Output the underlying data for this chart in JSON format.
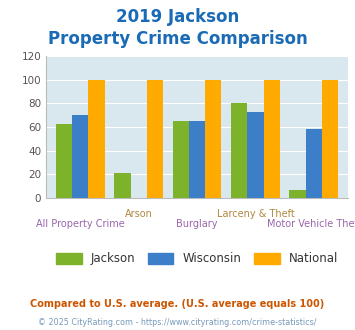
{
  "title_line1": "2019 Jackson",
  "title_line2": "Property Crime Comparison",
  "x_labels_top": [
    "",
    "Arson",
    "",
    "Larceny & Theft",
    ""
  ],
  "x_labels_bottom": [
    "All Property Crime",
    "",
    "Burglary",
    "",
    "Motor Vehicle Theft"
  ],
  "series": {
    "Jackson": [
      63,
      21,
      65,
      80,
      7
    ],
    "Wisconsin": [
      70,
      0,
      65,
      73,
      58
    ],
    "National": [
      100,
      100,
      100,
      100,
      100
    ]
  },
  "colors": {
    "Jackson": "#7db32b",
    "Wisconsin": "#3d7ec8",
    "National": "#ffaa00"
  },
  "ylim": [
    0,
    120
  ],
  "yticks": [
    0,
    20,
    40,
    60,
    80,
    100,
    120
  ],
  "title_color": "#1a6ab5",
  "axis_bg_color": "#d9e8ef",
  "fig_bg_color": "#ffffff",
  "grid_color": "#ffffff",
  "xlabel_top_color": "#b08840",
  "xlabel_bottom_color": "#9966aa",
  "title_fontsize": 12,
  "footnote1": "Compared to U.S. average. (U.S. average equals 100)",
  "footnote2": "© 2025 CityRating.com - https://www.cityrating.com/crime-statistics/",
  "footnote1_color": "#cc5500",
  "footnote2_color": "#7799bb"
}
